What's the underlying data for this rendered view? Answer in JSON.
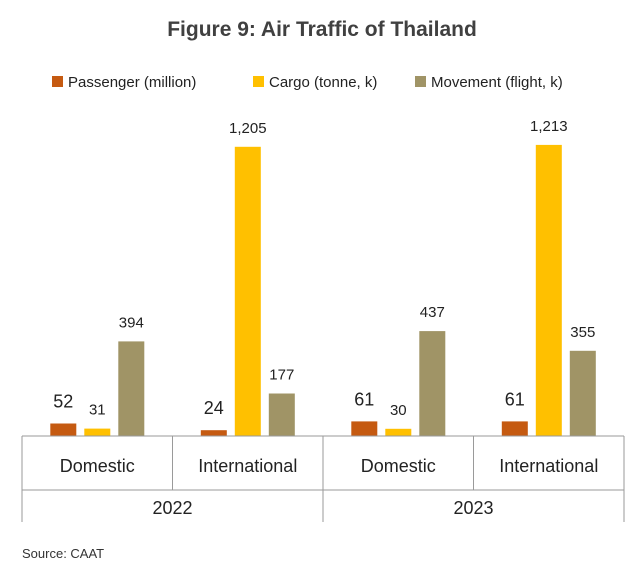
{
  "chart_data": {
    "type": "bar",
    "title": "Figure 9: Air Traffic of Thailand",
    "source": "Source: CAAT",
    "legend_position": "top",
    "grid": false,
    "categories": [
      {
        "label": "Domestic",
        "group": "2022"
      },
      {
        "label": "International",
        "group": "2022"
      },
      {
        "label": "Domestic",
        "group": "2023"
      },
      {
        "label": "International",
        "group": "2023"
      }
    ],
    "groups": [
      "2022",
      "2023"
    ],
    "ylim": [
      0,
      1250
    ],
    "series": [
      {
        "name": "Passenger (million)",
        "color": "#C55A11",
        "values": [
          52,
          24,
          61,
          61
        ],
        "labels": [
          "52",
          "24",
          "61",
          "61"
        ],
        "label_style": "big"
      },
      {
        "name": "Cargo (tonne, k)",
        "color": "#FFC000",
        "values": [
          31,
          1205,
          30,
          1213
        ],
        "labels": [
          "31",
          "1,205",
          "30",
          "1,213"
        ],
        "label_style": "normal"
      },
      {
        "name": "Movement (flight, k)",
        "color": "#A09466",
        "values": [
          394,
          177,
          437,
          355
        ],
        "labels": [
          "394",
          "177",
          "437",
          "355"
        ],
        "label_style": "normal"
      }
    ]
  }
}
